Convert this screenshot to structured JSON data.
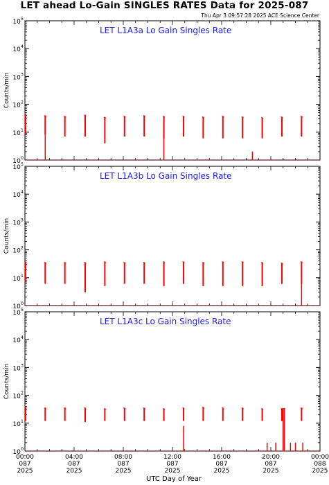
{
  "header": {
    "title": "LET ahead Lo-Gain SINGLES RATES Data for 2025-087",
    "timestamp": "Thu Apr  3 09:57:28 2025 ACE Science Center"
  },
  "colors": {
    "data": "#ff0000",
    "panel_title": "#1a1aff",
    "axis": "#000000"
  },
  "chart_data": {
    "type": "line",
    "xlabel": "UTC Day of Year",
    "x_range_hours": [
      0,
      24
    ],
    "x_ticks": [
      {
        "hour": 0,
        "time": "00:00",
        "day": "087",
        "year": "2025"
      },
      {
        "hour": 4,
        "time": "04:00",
        "day": "087",
        "year": "2025"
      },
      {
        "hour": 8,
        "time": "08:00",
        "day": "087",
        "year": "2025"
      },
      {
        "hour": 12,
        "time": "12:00",
        "day": "087",
        "year": "2025"
      },
      {
        "hour": 16,
        "time": "16:00",
        "day": "087",
        "year": "2025"
      },
      {
        "hour": 20,
        "time": "20:00",
        "day": "087",
        "year": "2025"
      },
      {
        "hour": 24,
        "time": "00:00",
        "day": "088",
        "year": "2025"
      }
    ],
    "y_scale": "log",
    "y_range": [
      1,
      100000
    ],
    "y_ticks": [
      {
        "base": "10",
        "exp": "0",
        "value": 1
      },
      {
        "base": "10",
        "exp": "1",
        "value": 10
      },
      {
        "base": "10",
        "exp": "2",
        "value": 100
      },
      {
        "base": "10",
        "exp": "3",
        "value": 1000
      },
      {
        "base": "10",
        "exp": "4",
        "value": 10000
      },
      {
        "base": "10",
        "exp": "5",
        "value": 100000
      }
    ],
    "panels": [
      {
        "title": "LET L1A3a Lo Gain Singles Rate",
        "ylabel": "Counts/min",
        "spikes": [
          {
            "hour": 0.05,
            "top": 45,
            "bottom": 8
          },
          {
            "hour": 1.65,
            "top": 40,
            "bottom": 8
          },
          {
            "hour": 3.25,
            "top": 38,
            "bottom": 7
          },
          {
            "hour": 4.9,
            "top": 42,
            "bottom": 7
          },
          {
            "hour": 6.5,
            "top": 35,
            "bottom": 4
          },
          {
            "hour": 8.1,
            "top": 38,
            "bottom": 7
          },
          {
            "hour": 9.7,
            "top": 40,
            "bottom": 7
          },
          {
            "hour": 11.3,
            "top": 38,
            "bottom": 6
          },
          {
            "hour": 12.9,
            "top": 38,
            "bottom": 7
          },
          {
            "hour": 14.5,
            "top": 36,
            "bottom": 6
          },
          {
            "hour": 16.1,
            "top": 38,
            "bottom": 6
          },
          {
            "hour": 17.7,
            "top": 36,
            "bottom": 6
          },
          {
            "hour": 19.3,
            "top": 34,
            "bottom": 6
          },
          {
            "hour": 20.9,
            "top": 36,
            "bottom": 7
          },
          {
            "hour": 22.5,
            "top": 38,
            "bottom": 7
          }
        ],
        "drops": [
          {
            "hour": 1.65,
            "bottom": 1
          },
          {
            "hour": 11.3,
            "bottom": 1
          },
          {
            "hour": 18.5,
            "top": 2,
            "bottom": 1
          }
        ]
      },
      {
        "title": "LET L1A3b Lo Gain Singles Rate",
        "ylabel": "Counts/min",
        "spikes": [
          {
            "hour": 0.05,
            "top": 38,
            "bottom": 7
          },
          {
            "hour": 1.65,
            "top": 36,
            "bottom": 6
          },
          {
            "hour": 3.25,
            "top": 36,
            "bottom": 6
          },
          {
            "hour": 4.9,
            "top": 36,
            "bottom": 3
          },
          {
            "hour": 6.5,
            "top": 38,
            "bottom": 5
          },
          {
            "hour": 8.1,
            "top": 36,
            "bottom": 6
          },
          {
            "hour": 9.7,
            "top": 36,
            "bottom": 6
          },
          {
            "hour": 11.3,
            "top": 38,
            "bottom": 5
          },
          {
            "hour": 12.9,
            "top": 38,
            "bottom": 6
          },
          {
            "hour": 14.5,
            "top": 36,
            "bottom": 5
          },
          {
            "hour": 16.1,
            "top": 38,
            "bottom": 5
          },
          {
            "hour": 17.7,
            "top": 38,
            "bottom": 5
          },
          {
            "hour": 19.3,
            "top": 36,
            "bottom": 5
          },
          {
            "hour": 20.9,
            "top": 34,
            "bottom": 6
          },
          {
            "hour": 22.5,
            "top": 38,
            "bottom": 6
          }
        ],
        "drops": [
          {
            "hour": 22.5,
            "bottom": 1
          }
        ]
      },
      {
        "title": "LET L1A3c Lo Gain Singles Rate",
        "ylabel": "Counts/min",
        "spikes": [
          {
            "hour": 0.05,
            "top": 38,
            "bottom": 12
          },
          {
            "hour": 1.65,
            "top": 36,
            "bottom": 12
          },
          {
            "hour": 3.25,
            "top": 36,
            "bottom": 12
          },
          {
            "hour": 4.9,
            "top": 36,
            "bottom": 11
          },
          {
            "hour": 6.5,
            "top": 34,
            "bottom": 12
          },
          {
            "hour": 8.1,
            "top": 36,
            "bottom": 12
          },
          {
            "hour": 9.7,
            "top": 36,
            "bottom": 12
          },
          {
            "hour": 11.3,
            "top": 34,
            "bottom": 12
          },
          {
            "hour": 12.9,
            "top": 36,
            "bottom": 12
          },
          {
            "hour": 14.5,
            "top": 38,
            "bottom": 12
          },
          {
            "hour": 16.1,
            "top": 36,
            "bottom": 12
          },
          {
            "hour": 17.7,
            "top": 36,
            "bottom": 12
          },
          {
            "hour": 19.3,
            "top": 34,
            "bottom": 12
          },
          {
            "hour": 20.9,
            "top": 34,
            "bottom": 12
          },
          {
            "hour": 22.5,
            "top": 36,
            "bottom": 12
          }
        ],
        "drops": [
          {
            "hour": 12.9,
            "bottom": 1
          },
          {
            "hour": 19.7,
            "top": 2,
            "bottom": 1
          },
          {
            "hour": 20.4,
            "top": 2,
            "bottom": 1
          },
          {
            "hour": 21.0,
            "top": 35,
            "bottom": 1
          },
          {
            "hour": 21.1,
            "top": 35,
            "bottom": 1
          },
          {
            "hour": 21.6,
            "top": 2,
            "bottom": 1
          },
          {
            "hour": 22.0,
            "top": 2,
            "bottom": 1
          },
          {
            "hour": 22.6,
            "top": 2,
            "bottom": 1
          }
        ]
      }
    ]
  }
}
